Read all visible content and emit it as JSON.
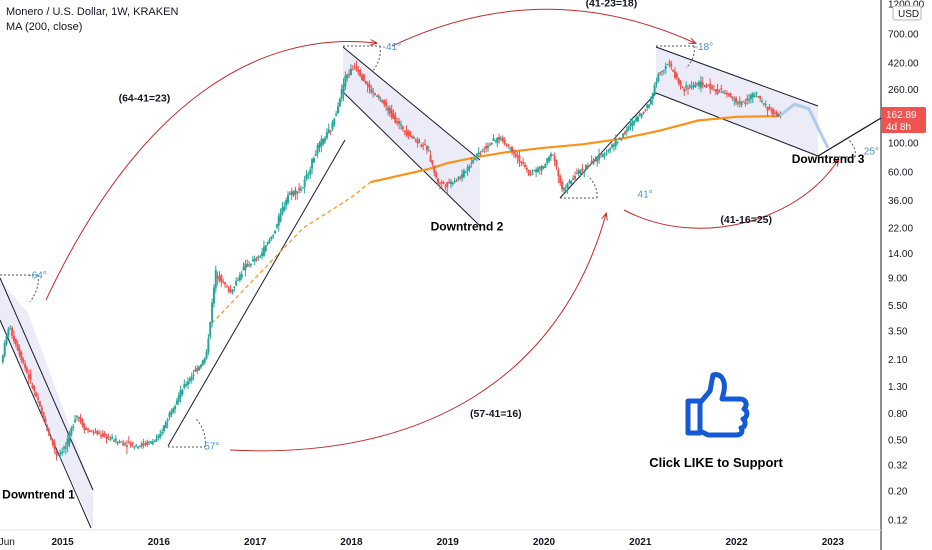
{
  "header": {
    "title": "Monero / U.S. Dollar, 1W, KRAKEN",
    "indicator": "MA (200, close)"
  },
  "currency_button": "USD",
  "price_tag": {
    "value": "162.89",
    "countdown": "4d 8h"
  },
  "colors": {
    "up": "#26a69a",
    "down": "#ef5350",
    "ma": "#f7931a",
    "channel": "#cfcfee",
    "arc": "#c62828",
    "angle": "#4a90d9",
    "projection": "#a8c6ec"
  },
  "chart_data": {
    "type": "candlestick",
    "title": "Monero / U.S. Dollar, 1W, KRAKEN",
    "y_scale": "log",
    "ylim": [
      0.1,
      1200
    ],
    "y_ticks": [
      "1200.00",
      "700.00",
      "420.00",
      "260.00",
      "160.00",
      "100.00",
      "60.00",
      "36.00",
      "22.00",
      "14.00",
      "9.00",
      "5.50",
      "3.50",
      "2.10",
      "1.30",
      "0.80",
      "0.50",
      "0.32",
      "0.20",
      "0.12"
    ],
    "y_tick_values": [
      1200,
      700,
      420,
      260,
      160,
      100,
      60,
      36,
      22,
      14,
      9,
      5.5,
      3.5,
      2.1,
      1.3,
      0.8,
      0.5,
      0.32,
      0.2,
      0.12
    ],
    "x_ticks": [
      "Jun",
      "2015",
      "2016",
      "2017",
      "2018",
      "2019",
      "2020",
      "2021",
      "2022",
      "2023"
    ],
    "x_tick_values": [
      2014.42,
      2015.0,
      2016.0,
      2017.0,
      2018.0,
      2019.0,
      2020.0,
      2021.0,
      2022.0,
      2023.0
    ],
    "xlim": [
      2014.35,
      2023.5
    ],
    "price_path": [
      [
        2014.37,
        2.0
      ],
      [
        2014.45,
        3.8
      ],
      [
        2014.55,
        2.5
      ],
      [
        2014.65,
        1.6
      ],
      [
        2014.75,
        1.0
      ],
      [
        2014.85,
        0.6
      ],
      [
        2014.95,
        0.38
      ],
      [
        2015.05,
        0.45
      ],
      [
        2015.15,
        0.8
      ],
      [
        2015.25,
        0.6
      ],
      [
        2015.4,
        0.55
      ],
      [
        2015.6,
        0.48
      ],
      [
        2015.8,
        0.45
      ],
      [
        2016.0,
        0.5
      ],
      [
        2016.15,
        0.9
      ],
      [
        2016.3,
        1.4
      ],
      [
        2016.5,
        2.2
      ],
      [
        2016.6,
        10.0
      ],
      [
        2016.75,
        7.0
      ],
      [
        2016.9,
        11.0
      ],
      [
        2017.05,
        13.0
      ],
      [
        2017.2,
        20.0
      ],
      [
        2017.35,
        40.0
      ],
      [
        2017.5,
        45.0
      ],
      [
        2017.65,
        90.0
      ],
      [
        2017.8,
        130.0
      ],
      [
        2017.95,
        330.0
      ],
      [
        2018.05,
        400.0
      ],
      [
        2018.2,
        260.0
      ],
      [
        2018.35,
        200.0
      ],
      [
        2018.5,
        140.0
      ],
      [
        2018.65,
        110.0
      ],
      [
        2018.8,
        90.0
      ],
      [
        2018.9,
        50.0
      ],
      [
        2019.0,
        48.0
      ],
      [
        2019.15,
        55.0
      ],
      [
        2019.3,
        80.0
      ],
      [
        2019.45,
        100.0
      ],
      [
        2019.55,
        110.0
      ],
      [
        2019.7,
        85.0
      ],
      [
        2019.85,
        58.0
      ],
      [
        2020.0,
        65.0
      ],
      [
        2020.1,
        85.0
      ],
      [
        2020.2,
        42.0
      ],
      [
        2020.35,
        58.0
      ],
      [
        2020.5,
        70.0
      ],
      [
        2020.65,
        85.0
      ],
      [
        2020.8,
        110.0
      ],
      [
        2020.95,
        150.0
      ],
      [
        2021.1,
        200.0
      ],
      [
        2021.2,
        350.0
      ],
      [
        2021.3,
        420.0
      ],
      [
        2021.45,
        260.0
      ],
      [
        2021.6,
        290.0
      ],
      [
        2021.75,
        270.0
      ],
      [
        2021.9,
        240.0
      ],
      [
        2022.05,
        200.0
      ],
      [
        2022.2,
        240.0
      ],
      [
        2022.35,
        180.0
      ],
      [
        2022.45,
        162.89
      ]
    ],
    "ma_200": [
      [
        2018.2,
        50.0
      ],
      [
        2018.5,
        56.0
      ],
      [
        2018.8,
        63.0
      ],
      [
        2019.0,
        70.0
      ],
      [
        2019.3,
        78.0
      ],
      [
        2019.6,
        85.0
      ],
      [
        2020.0,
        92.0
      ],
      [
        2020.4,
        98.0
      ],
      [
        2020.8,
        108.0
      ],
      [
        2021.2,
        125.0
      ],
      [
        2021.6,
        150.0
      ],
      [
        2022.0,
        160.0
      ],
      [
        2022.45,
        162.0
      ]
    ],
    "ma_200_dashed": [
      [
        2016.55,
        4.0
      ],
      [
        2017.0,
        9.0
      ],
      [
        2017.5,
        22.0
      ],
      [
        2018.0,
        38.0
      ],
      [
        2018.2,
        50.0
      ]
    ],
    "projection": [
      [
        2022.45,
        162.89
      ],
      [
        2022.6,
        200.0
      ],
      [
        2022.75,
        185.0
      ],
      [
        2022.85,
        130.0
      ],
      [
        2022.95,
        92.0
      ]
    ],
    "annotations": [
      {
        "text": "(64-41=23)",
        "x": 2015.85,
        "y": 210
      },
      {
        "text": "(41-23=18)",
        "x": 2020.7,
        "y": 1150
      },
      {
        "text": "(57-41=16)",
        "x": 2019.5,
        "y": 0.75
      },
      {
        "text": "(41-16=25)",
        "x": 2022.1,
        "y": 24
      }
    ],
    "angle_labels": [
      {
        "text": "-64°",
        "x": 2014.74,
        "y": 8.9
      },
      {
        "text": "-41°",
        "x": 2018.42,
        "y": 530
      },
      {
        "text": "-18°",
        "x": 2021.66,
        "y": 530
      },
      {
        "text": "57°",
        "x": 2016.55,
        "y": 0.42
      },
      {
        "text": "41°",
        "x": 2021.05,
        "y": 38
      },
      {
        "text": "25°",
        "x": 2023.4,
        "y": 82
      }
    ],
    "pattern_labels": [
      {
        "text": "Downtrend 1",
        "x": 2014.75,
        "y": 0.175
      },
      {
        "text": "Downtrend 2",
        "x": 2019.2,
        "y": 21
      },
      {
        "text": "Downtrend 3",
        "x": 2022.95,
        "y": 70
      }
    ],
    "call_to_action": "Click LIKE to Support"
  }
}
